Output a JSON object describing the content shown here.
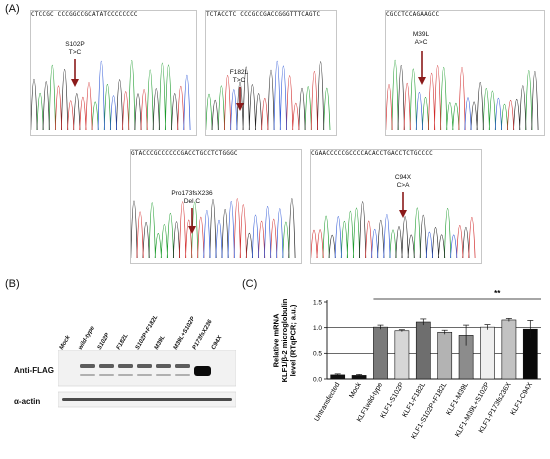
{
  "panels": {
    "a": "(A)",
    "b": "(B)",
    "c": "(C)"
  },
  "traces": [
    {
      "seq": "CTCCGC CCCGGCCGCATATCCCCCCCC",
      "label": "S102P\nT>C"
    },
    {
      "seq": "TCTACCTC CCCGCCGACCGGGTTTCAGTC",
      "label": "F182L\nT>C"
    },
    {
      "seq": "CGCCTCCAGAAGCC",
      "label": "M39L\nA>C"
    },
    {
      "seq": "GTACCCGCCCCCCGACCTGCCTCTGGGC",
      "label": "Pro173fsX236\nDel C"
    },
    {
      "seq": "CGAACCCCCGCCCCACACCTGACCTCTGCCCC",
      "label": "C94X\nC>A"
    }
  ],
  "western": {
    "lanes": [
      "Mock",
      "wild-type",
      "S102P",
      "F182L",
      "S102P+F182L",
      "M39L",
      "M39L+S102P",
      "P173fsX236",
      "C94X"
    ],
    "rows": [
      "Anti-FLAG",
      "α-actin"
    ]
  },
  "chart_data": {
    "type": "bar",
    "categories": [
      "Untransfected",
      "Mock",
      "KLF1wild-type",
      "KLF1-S102P",
      "KLF1-F182L",
      "KLF1-S102P+F182L",
      "KLF1-M39L",
      "KLF1-M39L+S102P",
      "KLF1-P173fs236X",
      "KLF1-C94X"
    ],
    "values": [
      0.08,
      0.07,
      1.01,
      0.94,
      1.11,
      0.91,
      0.85,
      1.01,
      1.15,
      0.97
    ],
    "errors": [
      0.02,
      0.02,
      0.04,
      0.02,
      0.06,
      0.04,
      0.2,
      0.05,
      0.03,
      0.17
    ],
    "colors": [
      "#111111",
      "#111111",
      "#7a7a7a",
      "#d6d6d6",
      "#6e6e6e",
      "#b3b3b3",
      "#8c8c8c",
      "#efefef",
      "#c2c2c2",
      "#0a0a0a"
    ],
    "ylabel": "Relative mRNA\nKLF1/β-2 microglobulin\nlevel (RTqPCR; a.u.)",
    "ylim": [
      0,
      1.5
    ],
    "yticks": [
      "0.0",
      "0.5",
      "1.0",
      "1.5"
    ],
    "reference_lines": [
      0.5,
      1.0
    ],
    "significance": "**"
  }
}
